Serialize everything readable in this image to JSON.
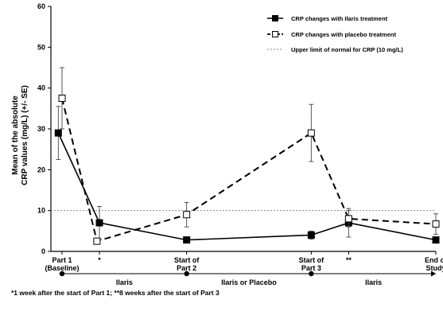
{
  "chart_data": {
    "type": "line",
    "title": "",
    "ylabel_lines": [
      "Mean of the absolute",
      "CRP values (mg/L) (+/- SE)"
    ],
    "ylim": [
      0,
      60
    ],
    "y_ticks": [
      "0",
      "10",
      "20",
      "30",
      "40",
      "50",
      "60"
    ],
    "x": [
      0,
      0.3,
      1,
      2,
      2.3,
      3
    ],
    "x_category_labels": [
      {
        "x": 0,
        "lines": [
          "Part 1",
          "(Baseline)"
        ]
      },
      {
        "x": 0.3,
        "lines": [
          "*"
        ]
      },
      {
        "x": 1,
        "lines": [
          "Start of",
          "Part 2"
        ]
      },
      {
        "x": 2,
        "lines": [
          "Start of",
          "Part 3"
        ]
      },
      {
        "x": 2.3,
        "lines": [
          "**"
        ]
      },
      {
        "x": 3,
        "lines": [
          "End of",
          "Study"
        ]
      }
    ],
    "series": [
      {
        "name": "CRP changes with Ilaris treatment",
        "style": "solid",
        "marker": "filled-square",
        "color": "#000000",
        "points": [
          {
            "x": -0.03,
            "y": 29,
            "err": 6.5
          },
          {
            "x": 0.3,
            "y": 7,
            "err": 4
          },
          {
            "x": 1,
            "y": 2.8,
            "err": 0
          },
          {
            "x": 2,
            "y": 4,
            "err": 1
          },
          {
            "x": 2.3,
            "y": 7,
            "err": 3.5
          },
          {
            "x": 3,
            "y": 2.8,
            "err": 0
          }
        ]
      },
      {
        "name": "CRP changes with placebo treatment",
        "style": "dashed",
        "marker": "open-square",
        "color": "#000000",
        "points": [
          {
            "x": 0,
            "y": 37.5,
            "err": 7.5
          },
          {
            "x": 0.28,
            "y": 2.5,
            "err": 0
          },
          {
            "x": 1,
            "y": 9,
            "err": 3
          },
          {
            "x": 2,
            "y": 29,
            "err": 7
          },
          {
            "x": 2.3,
            "y": 8,
            "err": 2
          },
          {
            "x": 3,
            "y": 6.7,
            "err": 2.5
          }
        ]
      }
    ],
    "reference_line": {
      "y": 10,
      "label": "Upper limit of normal for CRP (10 mg/L)",
      "color": "#888888"
    },
    "legend_position": "top-right",
    "phases": [
      {
        "label": "Ilaris",
        "from": 0,
        "to": 1
      },
      {
        "label": "Ilaris or Placebo",
        "from": 1,
        "to": 2
      },
      {
        "label": "Ilaris",
        "from": 2,
        "to": 3
      }
    ],
    "footnote": "*1 week after the start of Part 1; **8 weeks after the start of Part 3"
  }
}
